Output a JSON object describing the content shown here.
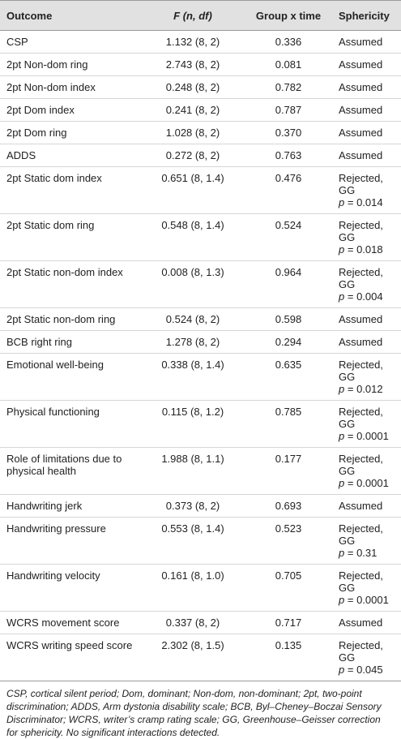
{
  "table": {
    "header": [
      "Outcome",
      "F (n, df)",
      "Group x time",
      "Sphericity"
    ],
    "rows": [
      [
        "CSP",
        "1.132 (8, 2)",
        "0.336",
        {
          "status": "Assumed"
        }
      ],
      [
        "2pt Non-dom ring",
        "2.743 (8, 2)",
        "0.081",
        {
          "status": "Assumed"
        }
      ],
      [
        "2pt Non-dom index",
        "0.248 (8, 2)",
        "0.782",
        {
          "status": "Assumed"
        }
      ],
      [
        "2pt Dom index",
        "0.241 (8, 2)",
        "0.787",
        {
          "status": "Assumed"
        }
      ],
      [
        "2pt Dom ring",
        "1.028 (8, 2)",
        "0.370",
        {
          "status": "Assumed"
        }
      ],
      [
        "ADDS",
        "0.272 (8, 2)",
        "0.763",
        {
          "status": "Assumed"
        }
      ],
      [
        "2pt Static dom index",
        "0.651 (8, 1.4)",
        "0.476",
        {
          "status": "Rejected, GG",
          "p_symbol": "p",
          "p_value": "= 0.014"
        }
      ],
      [
        "2pt Static dom ring",
        "0.548 (8, 1.4)",
        "0.524",
        {
          "status": "Rejected, GG",
          "p_symbol": "p",
          "p_value": "= 0.018"
        }
      ],
      [
        "2pt Static non-dom index",
        "0.008 (8, 1.3)",
        "0.964",
        {
          "status": "Rejected, GG",
          "p_symbol": "p",
          "p_value": "= 0.004"
        }
      ],
      [
        "2pt Static non-dom ring",
        "0.524 (8, 2)",
        "0.598",
        {
          "status": "Assumed"
        }
      ],
      [
        "BCB right ring",
        "1.278 (8, 2)",
        "0.294",
        {
          "status": "Assumed"
        }
      ],
      [
        "Emotional well-being",
        "0.338 (8, 1.4)",
        "0.635",
        {
          "status": "Rejected, GG",
          "p_symbol": "p",
          "p_value": "= 0.012"
        }
      ],
      [
        "Physical functioning",
        "0.115 (8, 1.2)",
        "0.785",
        {
          "status": "Rejected, GG",
          "p_symbol": "p",
          "p_value": "= 0.0001"
        }
      ],
      [
        "Role of limitations due to physical health",
        "1.988 (8, 1.1)",
        "0.177",
        {
          "status": "Rejected, GG",
          "p_symbol": "p",
          "p_value": "= 0.0001"
        }
      ],
      [
        "Handwriting jerk",
        "0.373 (8, 2)",
        "0.693",
        {
          "status": "Assumed"
        }
      ],
      [
        "Handwriting pressure",
        "0.553 (8, 1.4)",
        "0.523",
        {
          "status": "Rejected, GG",
          "p_symbol": "p",
          "p_value": "= 0.31"
        }
      ],
      [
        "Handwriting velocity",
        "0.161 (8, 1.0)",
        "0.705",
        {
          "status": "Rejected, GG",
          "p_symbol": "p",
          "p_value": "= 0.0001"
        }
      ],
      [
        "WCRS movement score",
        "0.337 (8, 2)",
        "0.717",
        {
          "status": "Assumed"
        }
      ],
      [
        "WCRS writing speed score",
        "2.302 (8, 1.5)",
        "0.135",
        {
          "status": "Rejected, GG",
          "p_symbol": "p",
          "p_value": "= 0.045"
        }
      ]
    ],
    "footnote": "CSP, cortical silent period; Dom, dominant; Non-dom, non-dominant; 2pt, two-point discrimination; ADDS, Arm dystonia disability scale; BCB, Byl–Cheney–Boczai Sensory Discriminator; WCRS, writer’s cramp rating scale; GG, Greenhouse–Geisser correction for sphericity. No significant interactions detected."
  }
}
